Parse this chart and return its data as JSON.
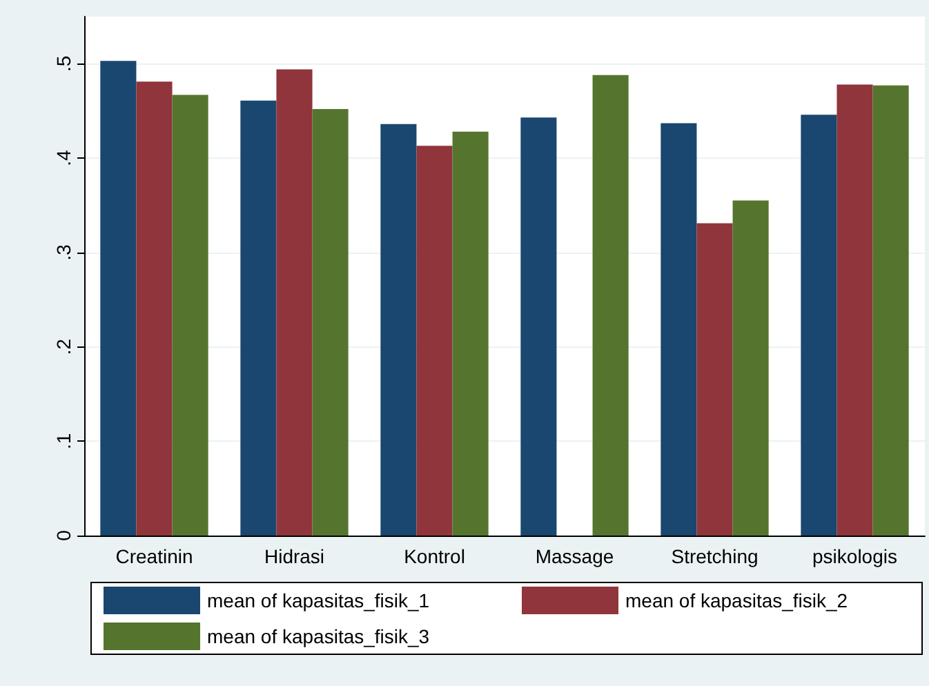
{
  "chart_data": {
    "type": "bar",
    "categories": [
      "Creatinin",
      "Hidrasi",
      "Kontrol",
      "Massage",
      "Stretching",
      "psikologis"
    ],
    "series": [
      {
        "name": "mean of kapasitas_fisik_1",
        "color": "#1a476f",
        "values": [
          0.503,
          0.461,
          0.436,
          0.443,
          0.437,
          0.446
        ]
      },
      {
        "name": "mean of kapasitas_fisik_2",
        "color": "#90353b",
        "values": [
          0.481,
          0.494,
          0.413,
          null,
          0.331,
          0.478
        ]
      },
      {
        "name": "mean of kapasitas_fisik_3",
        "color": "#55752f",
        "values": [
          0.467,
          0.452,
          0.428,
          0.488,
          0.355,
          0.477
        ]
      }
    ],
    "ylim": [
      0,
      0.55
    ],
    "yticks": [
      0,
      {
        "value": 0.1,
        "label": ".1"
      },
      {
        "value": 0.2,
        "label": ".2"
      },
      {
        "value": 0.3,
        "label": ".3"
      },
      {
        "value": 0.4,
        "label": ".4"
      },
      {
        "value": 0.5,
        "label": ".5"
      }
    ],
    "grid": "y",
    "legend": "bottom"
  }
}
